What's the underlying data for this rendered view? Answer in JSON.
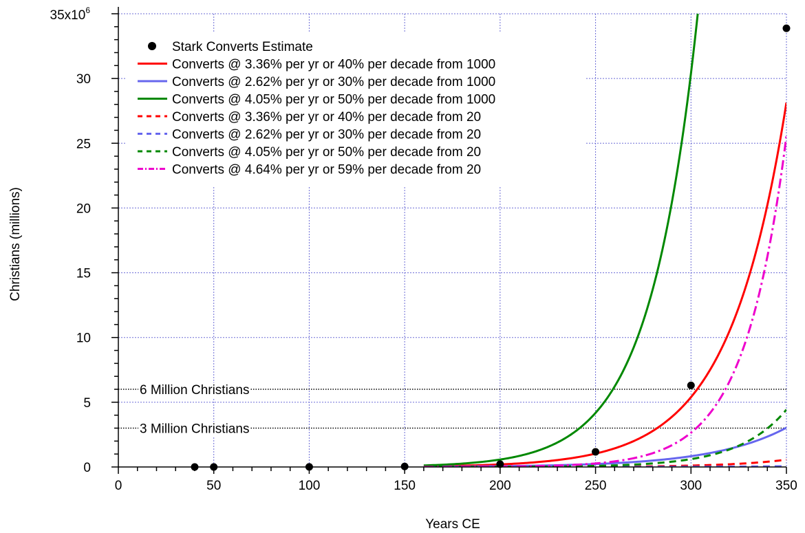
{
  "chart_data": {
    "type": "line",
    "title": "",
    "xlabel": "Years CE",
    "ylabel": "Christians (millions)",
    "xlim": [
      0,
      350
    ],
    "ylim": [
      0,
      35000000
    ],
    "y_top_label_base": "35x10",
    "y_top_label_exp": "6",
    "grid": true,
    "legend_placement": "top-left",
    "x_ticks": [
      0,
      50,
      100,
      150,
      200,
      250,
      300,
      350
    ],
    "x_tick_labels": [
      "0",
      "50",
      "100",
      "150",
      "200",
      "250",
      "300",
      "350"
    ],
    "y_ticks": [
      0,
      5000000,
      10000000,
      15000000,
      20000000,
      25000000,
      30000000
    ],
    "y_tick_labels": [
      "0",
      "5",
      "10",
      "15",
      "20",
      "25",
      "30"
    ],
    "legend": {
      "points_label": "Stark Converts Estimate"
    },
    "points": {
      "name": "Stark Converts Estimate",
      "x": [
        40,
        50,
        100,
        150,
        200,
        250,
        300,
        350
      ],
      "y": [
        1000,
        1400,
        7530,
        40500,
        217800,
        1170000,
        6300000,
        33880000
      ],
      "color": "#000000"
    },
    "series": [
      {
        "name": "Converts @ 3.36% per yr or 40% per decade from 1000",
        "rate": 0.0336,
        "start_x": 40,
        "start_value": 1000,
        "color": "#ff0000",
        "dash": "solid"
      },
      {
        "name": "Converts @ 2.62% per yr or 30% per decade from 1000",
        "rate": 0.0262,
        "start_x": 40,
        "start_value": 1000,
        "color": "#6666ee",
        "dash": "solid"
      },
      {
        "name": "Converts @ 4.05% per yr or 50% per decade from 1000",
        "rate": 0.0405,
        "start_x": 40,
        "start_value": 1000,
        "color": "#008800",
        "dash": "solid"
      },
      {
        "name": "Converts @ 3.36% per yr or 40% per decade from 20",
        "rate": 0.0336,
        "start_x": 40,
        "start_value": 20,
        "color": "#ff0000",
        "dash": "dashed"
      },
      {
        "name": "Converts @ 2.62% per yr or 30% per decade from 20",
        "rate": 0.0262,
        "start_x": 40,
        "start_value": 20,
        "color": "#6666ee",
        "dash": "dashed"
      },
      {
        "name": "Converts @ 4.05% per yr or 50% per decade from 20",
        "rate": 0.0405,
        "start_x": 40,
        "start_value": 20,
        "color": "#008800",
        "dash": "dashed"
      },
      {
        "name": "Converts @ 4.64% per yr or 59% per decade from 20",
        "rate": 0.0464,
        "start_x": 40,
        "start_value": 20,
        "color": "#ee00cc",
        "dash": "dashdot"
      }
    ],
    "reference_lines": [
      {
        "label": "6 Million Christians",
        "y": 6000000
      },
      {
        "label": "3 Million Christians",
        "y": 3000000
      }
    ]
  }
}
